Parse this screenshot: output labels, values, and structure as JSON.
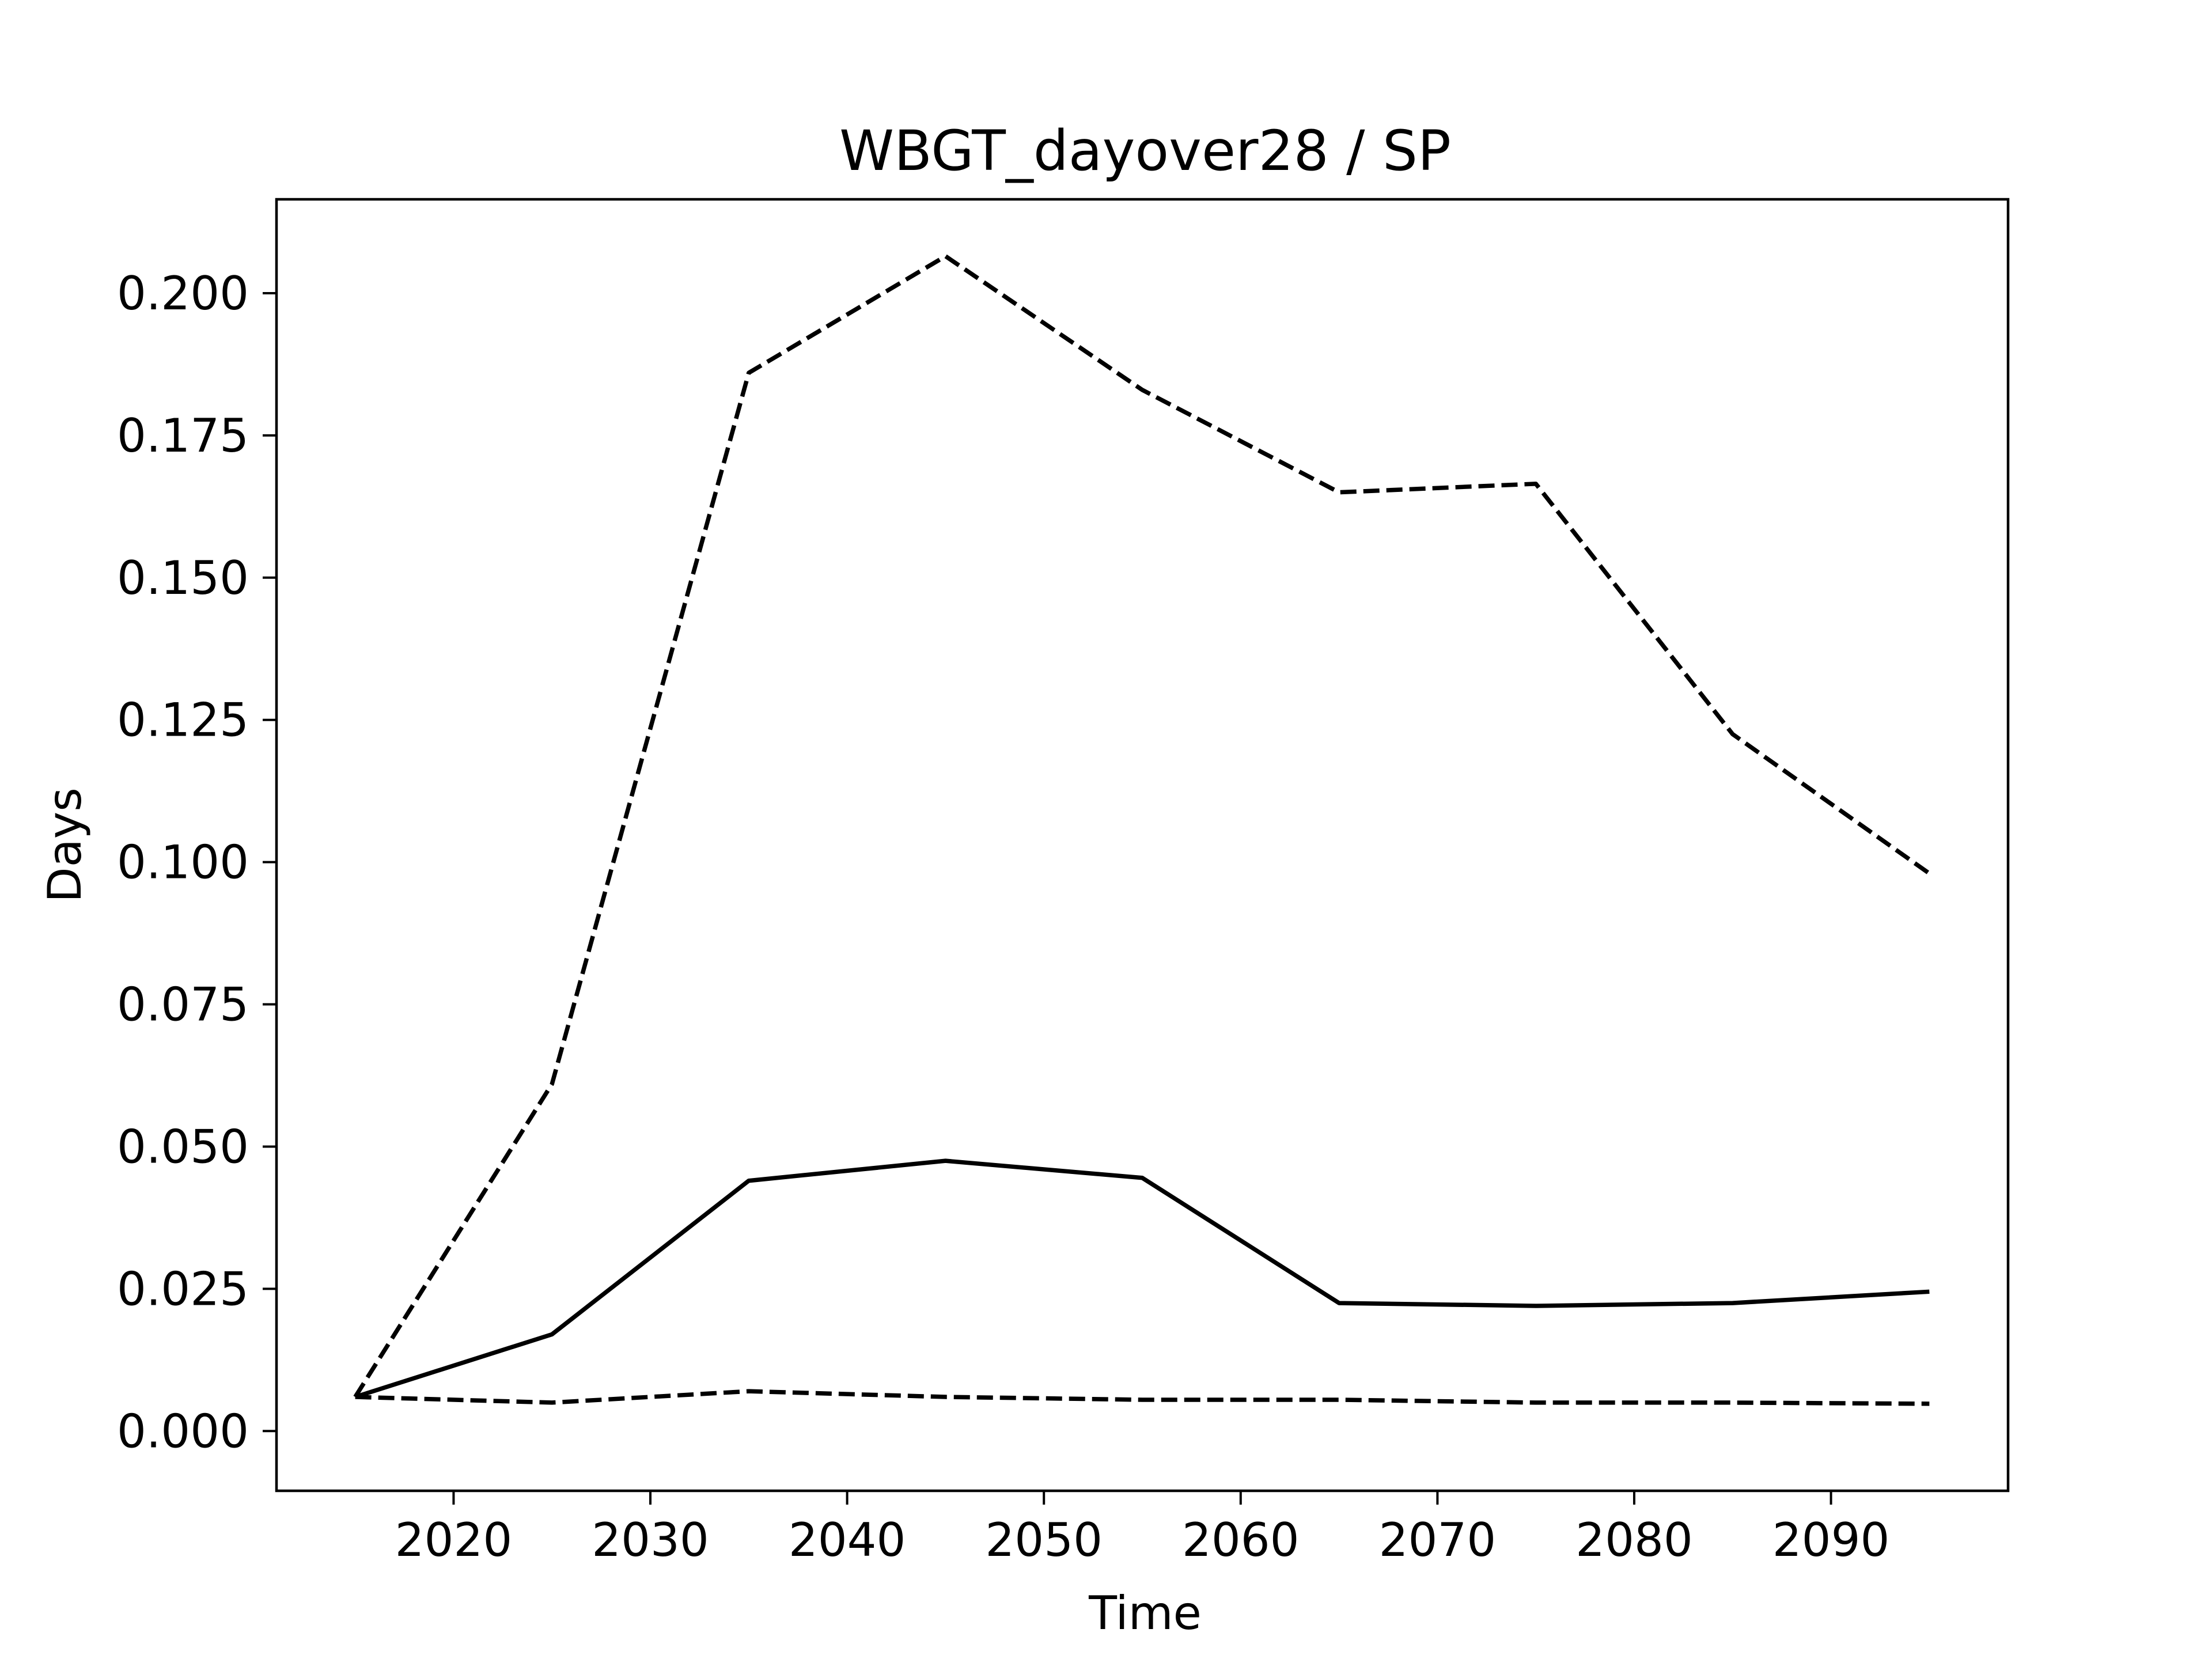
{
  "chart_data": {
    "type": "line",
    "title": "WBGT_dayover28 / SP",
    "xlabel": "Time",
    "ylabel": "Days",
    "xlim": [
      2011,
      2099
    ],
    "ylim": [
      -0.0105,
      0.2165
    ],
    "x_ticks": [
      2020,
      2030,
      2040,
      2050,
      2060,
      2070,
      2080,
      2090
    ],
    "y_ticks": [
      0.0,
      0.025,
      0.05,
      0.075,
      0.1,
      0.125,
      0.15,
      0.175,
      0.2
    ],
    "y_tick_labels": [
      "0.000",
      "0.025",
      "0.050",
      "0.075",
      "0.100",
      "0.125",
      "0.150",
      "0.175",
      "0.200"
    ],
    "x": [
      2015,
      2025,
      2035,
      2045,
      2055,
      2065,
      2075,
      2085,
      2095
    ],
    "grid": false,
    "legend": false,
    "series": [
      {
        "style": "dashed",
        "color": "#000000",
        "values": [
          0.006,
          0.061,
          0.186,
          0.2065,
          0.183,
          0.165,
          0.1665,
          0.1225,
          0.098
        ]
      },
      {
        "style": "solid",
        "color": "#000000",
        "values": [
          0.006,
          0.017,
          0.044,
          0.0475,
          0.0445,
          0.0225,
          0.022,
          0.0225,
          0.0245
        ]
      },
      {
        "style": "dashed",
        "color": "#000000",
        "values": [
          0.006,
          0.005,
          0.007,
          0.006,
          0.0055,
          0.0055,
          0.005,
          0.005,
          0.0048
        ]
      }
    ]
  }
}
